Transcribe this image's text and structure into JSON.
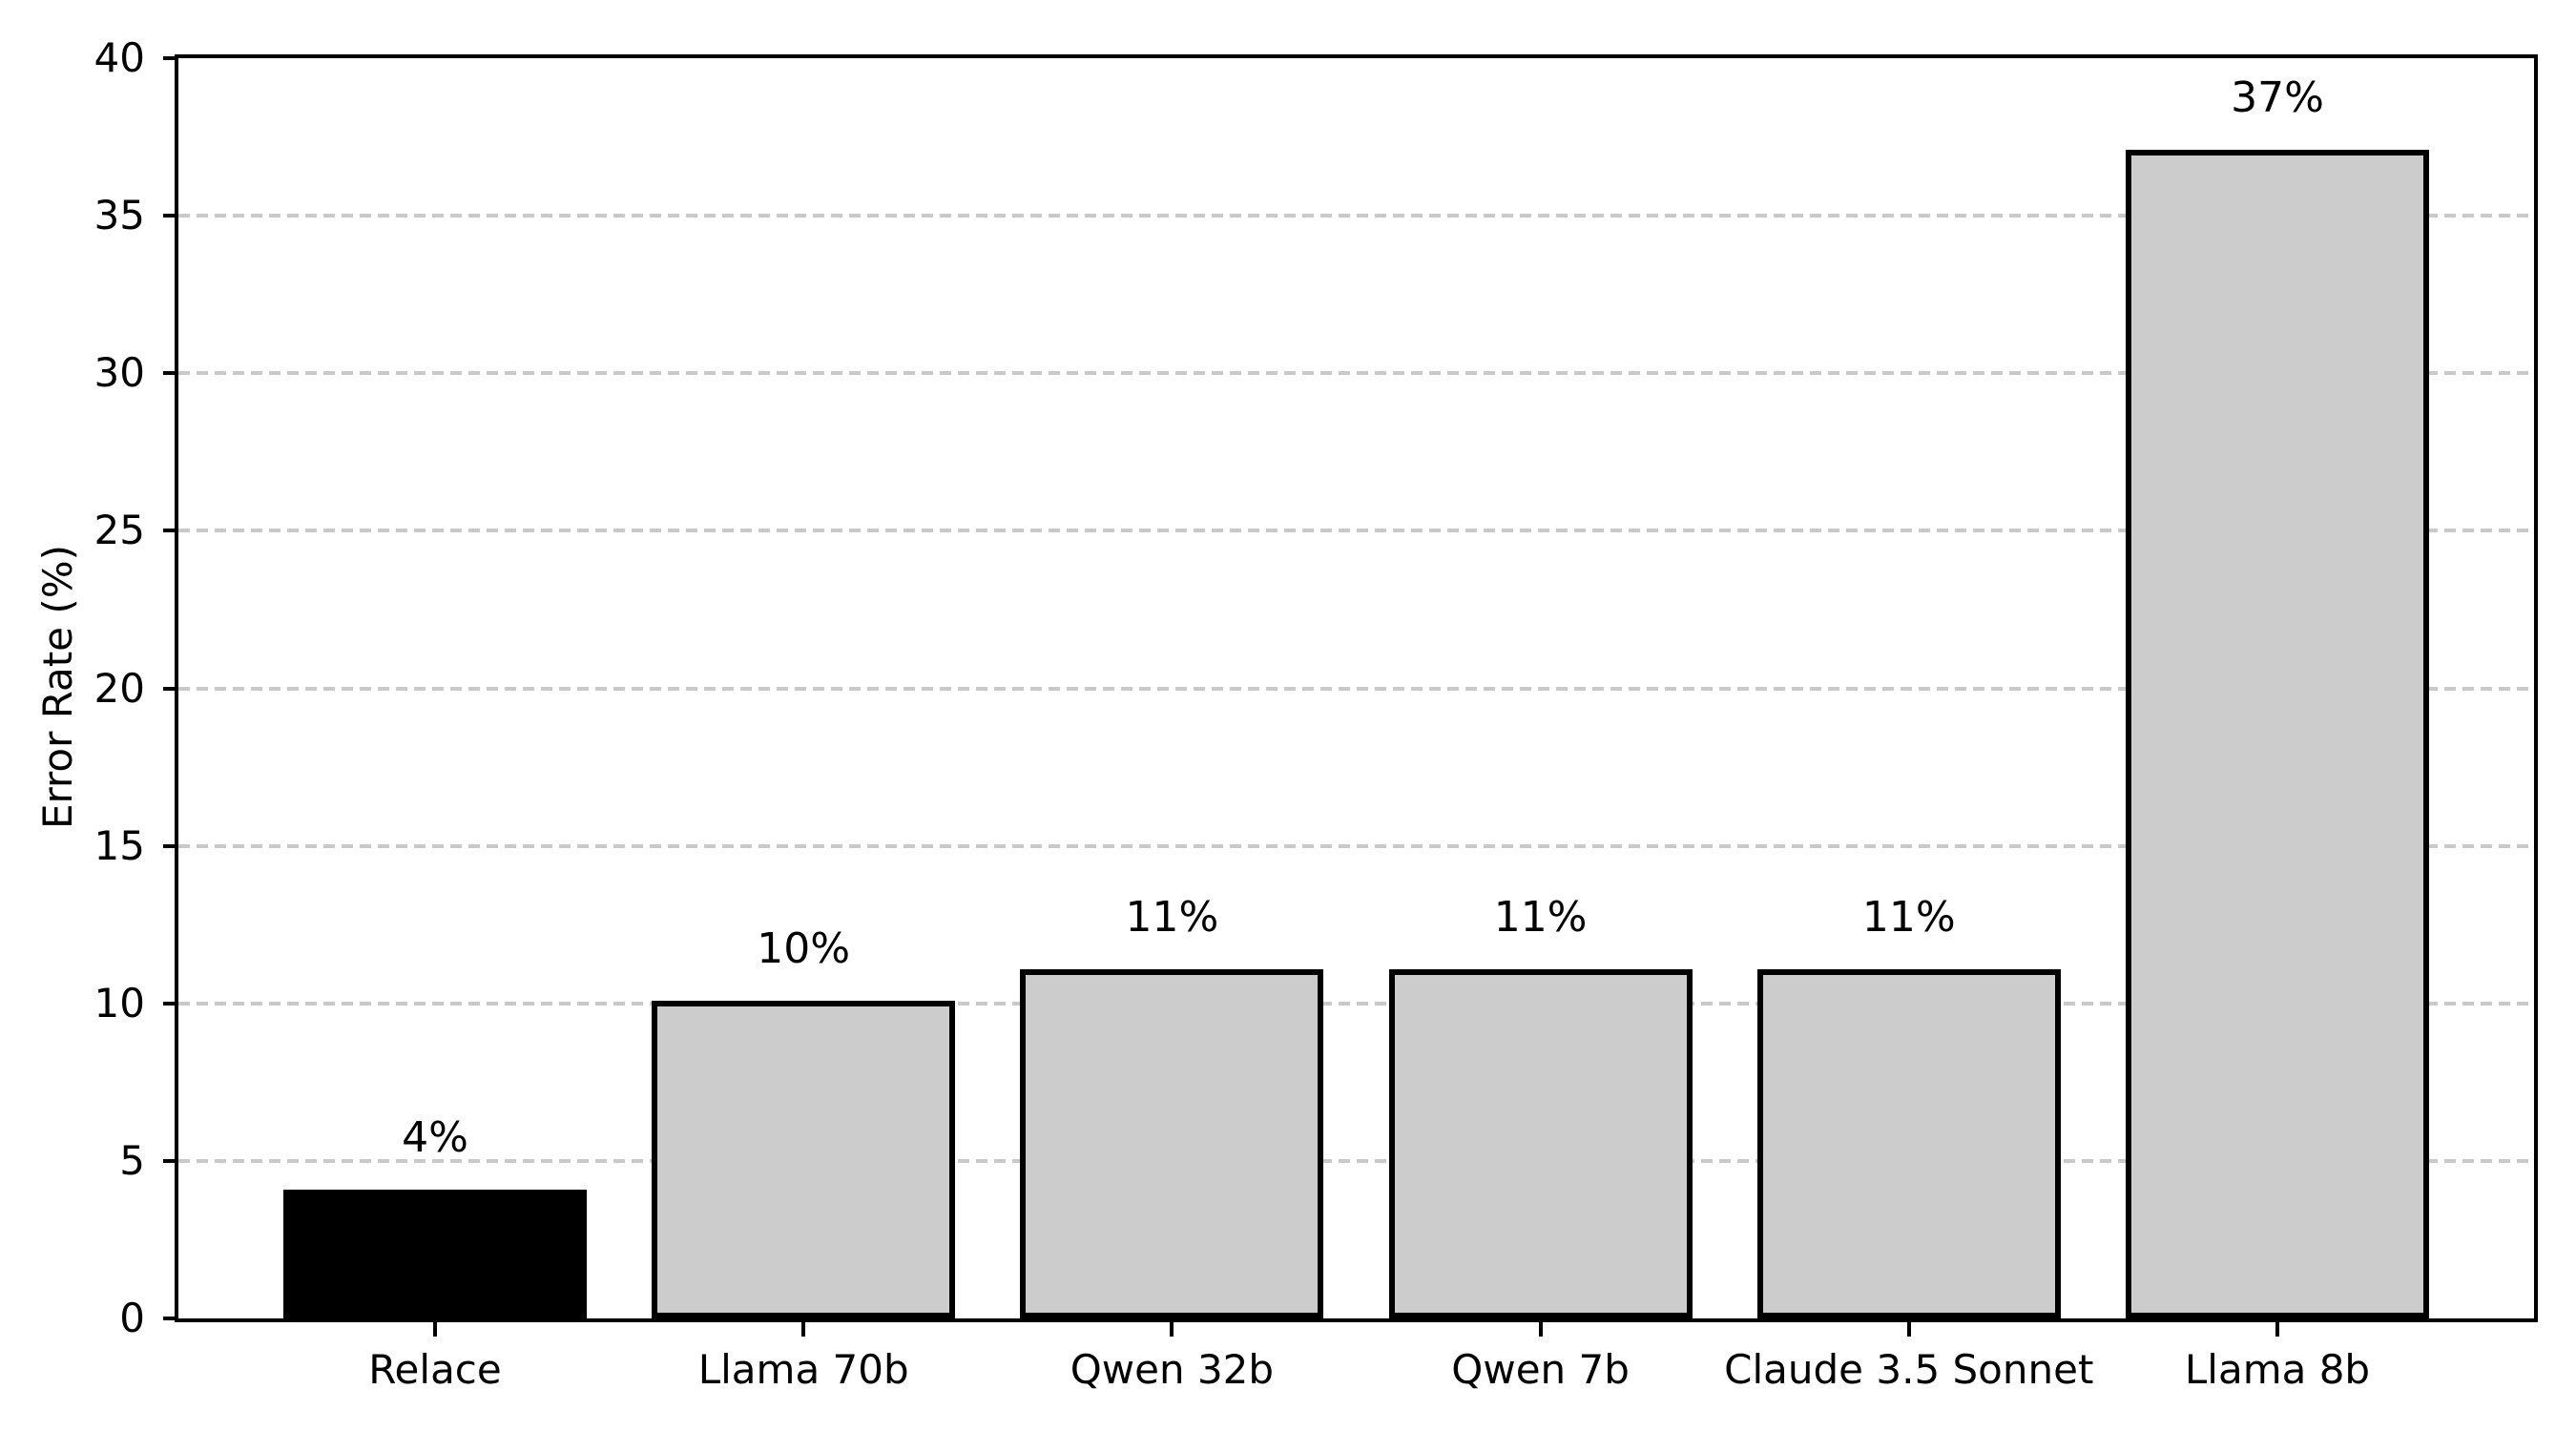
{
  "figure": {
    "background": "#ffffff"
  },
  "chart_data": {
    "type": "bar",
    "title": "",
    "xlabel": "",
    "ylabel": "Error Rate (%)",
    "categories": [
      "Relace",
      "Llama 70b",
      "Qwen 32b",
      "Qwen 7b",
      "Claude 3.5 Sonnet",
      "Llama 8b"
    ],
    "values": [
      4,
      10,
      11,
      11,
      11,
      37
    ],
    "bar_labels": [
      "4%",
      "10%",
      "11%",
      "11%",
      "11%",
      "37%"
    ],
    "ylim": [
      0,
      40
    ],
    "yticks": [
      0,
      5,
      10,
      15,
      20,
      25,
      30,
      35,
      40
    ],
    "grid": {
      "axis": "y",
      "style": "dashed",
      "color": "#c9c9c9",
      "gridlines_at": [
        5,
        10,
        15,
        20,
        25,
        30,
        35
      ]
    },
    "legend": "none",
    "colors": {
      "bar_fill": "#cccccc",
      "bar_edge": "#000000",
      "highlight_fill": "#000000",
      "axis": "#000000",
      "text": "#000000"
    },
    "highlight_index": 0
  }
}
